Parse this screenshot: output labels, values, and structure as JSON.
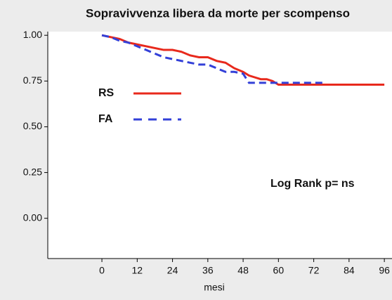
{
  "chart_data": {
    "type": "line",
    "title": "Sopravivvenza libera da morte per scompenso",
    "x_label": "mesi",
    "annotation": "Log Rank p= ns",
    "xlim": [
      -18.4,
      98.6
    ],
    "ylim": [
      -0.22,
      1.02
    ],
    "xticks": [
      0,
      12,
      24,
      36,
      48,
      60,
      72,
      84,
      96
    ],
    "yticks": [
      {
        "value": 1,
        "label": "1.00"
      },
      {
        "value": 0.75,
        "label": "0.75"
      },
      {
        "value": 0.5,
        "label": "0.50"
      },
      {
        "value": 0.25,
        "label": "0.25"
      },
      {
        "value": 0,
        "label": "0.00"
      }
    ],
    "series": [
      {
        "name": "RS",
        "color": "#e8291c",
        "dashed": false,
        "x": [
          0,
          3,
          6,
          9,
          12,
          15,
          18,
          21,
          24,
          27,
          30,
          33,
          36,
          39,
          42,
          45,
          48,
          50,
          52,
          54,
          56,
          58,
          60,
          70,
          80,
          90,
          96
        ],
        "values": [
          1.0,
          0.99,
          0.98,
          0.96,
          0.95,
          0.94,
          0.93,
          0.92,
          0.92,
          0.91,
          0.89,
          0.88,
          0.88,
          0.86,
          0.85,
          0.82,
          0.8,
          0.78,
          0.77,
          0.76,
          0.76,
          0.75,
          0.73,
          0.73,
          0.73,
          0.73,
          0.73
        ]
      },
      {
        "name": "FA",
        "color": "#3340d8",
        "dashed": true,
        "x": [
          0,
          3,
          6,
          9,
          12,
          15,
          18,
          21,
          24,
          27,
          30,
          33,
          36,
          39,
          42,
          45,
          48,
          50,
          52,
          60,
          70,
          75
        ],
        "values": [
          1.0,
          0.99,
          0.97,
          0.96,
          0.94,
          0.92,
          0.9,
          0.88,
          0.87,
          0.86,
          0.85,
          0.84,
          0.84,
          0.82,
          0.8,
          0.8,
          0.79,
          0.74,
          0.74,
          0.74,
          0.74,
          0.74
        ]
      }
    ]
  }
}
